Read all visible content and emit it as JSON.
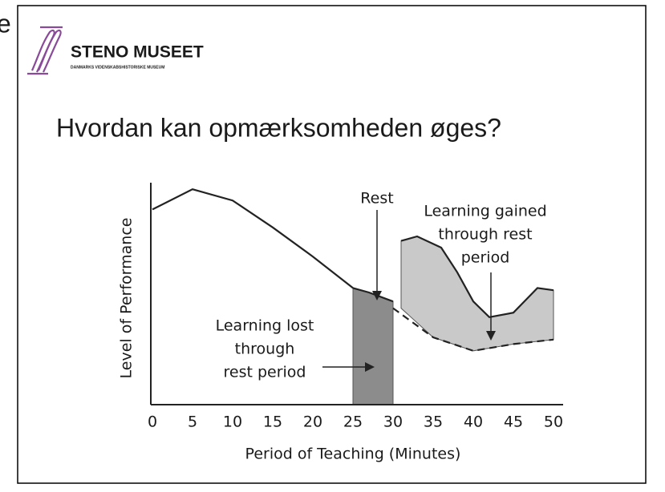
{
  "slide": {
    "corner_text": "e",
    "logo_text": "STENO MUSEET",
    "logo_subtitle": "DANMARKS VIDENSKABSHISTORISKE MUSEUM"
  },
  "chart_data": {
    "type": "line",
    "title": "Hvordan kan opmærksomheden øges?",
    "x_label": "Period of Teaching (Minutes)",
    "y_label": "Level of Performance",
    "xlim": [
      0,
      50
    ],
    "xticks": [
      0,
      5,
      10,
      15,
      20,
      25,
      30,
      35,
      40,
      45,
      50
    ],
    "ylim": [
      0,
      100
    ],
    "series": [
      {
        "color": "#222222",
        "x": [
          0,
          5,
          10,
          15,
          20,
          25
        ],
        "values": [
          87,
          96,
          91,
          79,
          66,
          52
        ]
      },
      {
        "color": "#222222",
        "fill": "#8c8c8c",
        "x": [
          25,
          27,
          30
        ],
        "values": [
          52,
          50,
          46
        ]
      },
      {
        "color": "#222222",
        "dashed": true,
        "x": [
          30,
          35,
          40,
          45,
          50
        ],
        "values": [
          43,
          30,
          24,
          27,
          29
        ]
      },
      {
        "color": "#222222",
        "fill": "#c9c9c9",
        "fill_to": 2,
        "x": [
          31,
          33,
          36,
          38,
          40,
          42,
          45,
          48,
          50
        ],
        "values": [
          73,
          75,
          70,
          59,
          46,
          39,
          41,
          52,
          51
        ]
      }
    ],
    "annotations": [
      {
        "lines": [
          "Rest"
        ]
      },
      {
        "lines": [
          "Learning gained",
          "through rest",
          "period"
        ]
      },
      {
        "lines": [
          "Learning lost",
          "through",
          "rest period"
        ]
      }
    ]
  }
}
